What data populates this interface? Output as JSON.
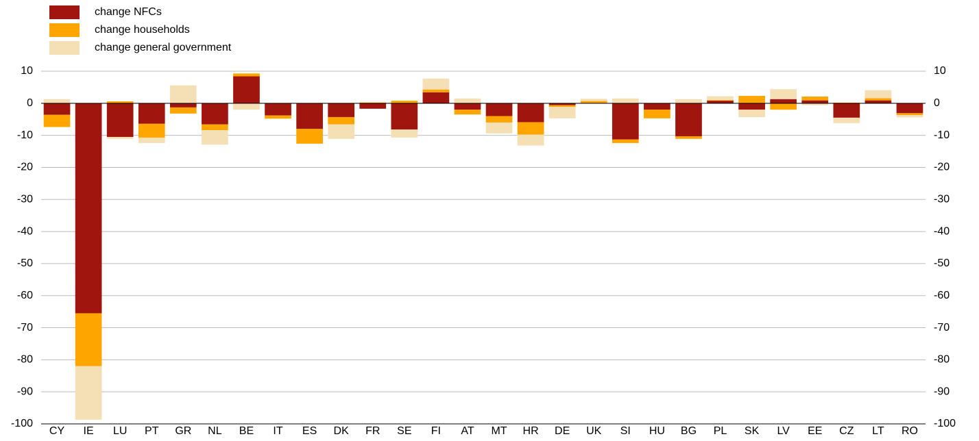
{
  "chart_data": {
    "type": "bar",
    "stacked": true,
    "categories": [
      "CY",
      "IE",
      "LU",
      "PT",
      "GR",
      "NL",
      "BE",
      "IT",
      "ES",
      "DK",
      "FR",
      "SE",
      "FI",
      "AT",
      "MT",
      "HR",
      "DE",
      "UK",
      "SI",
      "HU",
      "BG",
      "PL",
      "SK",
      "LV",
      "EE",
      "CZ",
      "LT",
      "RO"
    ],
    "series": [
      {
        "name": "change NFCs",
        "color": "#a0160f",
        "values": [
          -3.6,
          -65.5,
          -10.5,
          -6.4,
          -1.3,
          -6.6,
          8.4,
          -3.8,
          -8,
          -4.3,
          -1.7,
          -8.2,
          3.4,
          -2,
          -4,
          -5.9,
          -0.6,
          0.1,
          -11.3,
          -2,
          -10.3,
          0.8,
          -2,
          1.3,
          0.9,
          -4.5,
          0.9,
          -3.1
        ]
      },
      {
        "name": "change households",
        "color": "#ffa500",
        "values": [
          -3.8,
          -16.5,
          0.6,
          -4.3,
          -1.9,
          -1.8,
          0.9,
          -1,
          -4.6,
          -2.3,
          0.2,
          0.8,
          0.9,
          -1.5,
          -2,
          -3.9,
          -0.5,
          0.6,
          -1.1,
          -2.7,
          -0.8,
          0.2,
          2.3,
          -2,
          1.2,
          0.2,
          0.7,
          -0.6
        ]
      },
      {
        "name": "change general government",
        "color": "#f5dfb5",
        "values": [
          1.3,
          -16.7,
          -0.6,
          -1.7,
          5.6,
          -4.5,
          -2,
          0,
          0,
          -4.5,
          0.3,
          -2.5,
          3.4,
          1.5,
          -3.4,
          -3.4,
          -3.6,
          0.7,
          1.5,
          0,
          1.3,
          1.2,
          -2.3,
          3.1,
          -0.6,
          -1.7,
          2.5,
          -0.7
        ]
      }
    ],
    "ylim": [
      -100,
      10
    ],
    "yticks": [
      10,
      0,
      -10,
      -20,
      -30,
      -40,
      -50,
      -60,
      -70,
      -80,
      -90,
      -100
    ],
    "grid": true
  }
}
